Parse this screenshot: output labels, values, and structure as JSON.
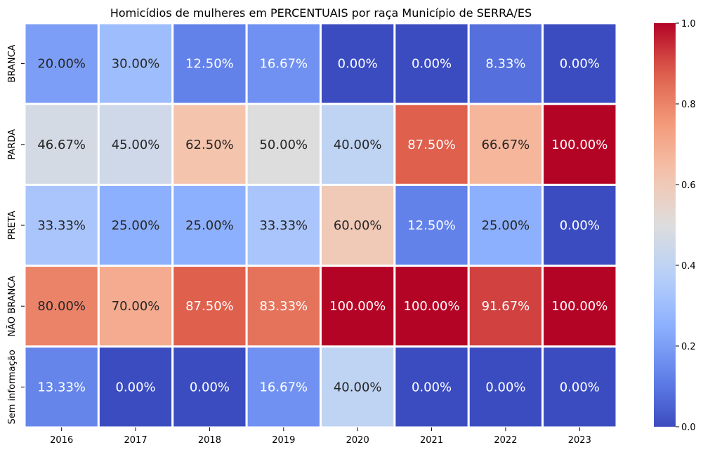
{
  "chart_data": {
    "type": "heatmap",
    "title": "Homicídios de mulheres em PERCENTUAIS por raça Município de SERRA/ES",
    "xlabel": "",
    "ylabel": "",
    "x_categories": [
      "2016",
      "2017",
      "2018",
      "2019",
      "2020",
      "2021",
      "2022",
      "2023"
    ],
    "y_categories": [
      "BRANCA",
      "PARDA",
      "PRETA",
      "NÃO BRANCA",
      "Sem informação"
    ],
    "values": [
      [
        0.2,
        0.3,
        0.125,
        0.1667,
        0.0,
        0.0,
        0.0833,
        0.0
      ],
      [
        0.4667,
        0.45,
        0.625,
        0.5,
        0.4,
        0.875,
        0.6667,
        1.0
      ],
      [
        0.3333,
        0.25,
        0.25,
        0.3333,
        0.6,
        0.125,
        0.25,
        0.0
      ],
      [
        0.8,
        0.7,
        0.875,
        0.8333,
        1.0,
        1.0,
        0.9167,
        1.0
      ],
      [
        0.1333,
        0.0,
        0.0,
        0.1667,
        0.4,
        0.0,
        0.0,
        0.0
      ]
    ],
    "labels": [
      [
        "20.00%",
        "30.00%",
        "12.50%",
        "16.67%",
        "0.00%",
        "0.00%",
        "8.33%",
        "0.00%"
      ],
      [
        "46.67%",
        "45.00%",
        "62.50%",
        "50.00%",
        "40.00%",
        "87.50%",
        "66.67%",
        "100.00%"
      ],
      [
        "33.33%",
        "25.00%",
        "25.00%",
        "33.33%",
        "60.00%",
        "12.50%",
        "25.00%",
        "0.00%"
      ],
      [
        "80.00%",
        "70.00%",
        "87.50%",
        "83.33%",
        "100.00%",
        "100.00%",
        "91.67%",
        "100.00%"
      ],
      [
        "13.33%",
        "0.00%",
        "0.00%",
        "16.67%",
        "40.00%",
        "0.00%",
        "0.00%",
        "0.00%"
      ]
    ],
    "colormap": "coolwarm",
    "vmin": 0,
    "vmax": 1,
    "colorbar_ticks": [
      "0.0",
      "0.2",
      "0.4",
      "0.6",
      "0.8",
      "1.0"
    ],
    "colorbar_values": [
      0,
      0.2,
      0.4,
      0.6,
      0.8,
      1.0
    ],
    "colors": {
      "cell_border": "#ffffff",
      "text_light": "#ffffff",
      "text_dark": "#262626"
    }
  }
}
